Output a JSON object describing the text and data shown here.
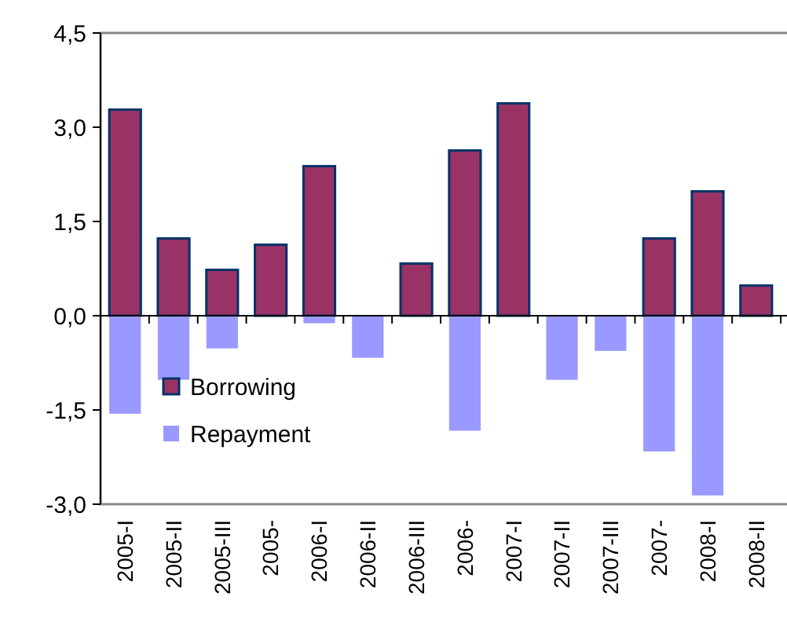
{
  "chart_data": {
    "type": "bar",
    "categories": [
      "2005-I",
      "2005-II",
      "2005-III",
      "2005-",
      "2006-I",
      "2006-II",
      "2006-III",
      "2006-",
      "2007-I",
      "2007-II",
      "2007-III",
      "2007-",
      "2008-I",
      "2008-II"
    ],
    "series": [
      {
        "name": "Borrowing",
        "color": "#993366",
        "values": [
          3.28,
          1.23,
          0.73,
          1.13,
          2.38,
          0,
          0.83,
          2.63,
          3.38,
          0,
          0,
          1.23,
          1.98,
          0.48
        ]
      },
      {
        "name": "Repayment",
        "color": "#9999ff",
        "values": [
          -1.56,
          -1.02,
          -0.52,
          0,
          -0.12,
          -0.67,
          0,
          -1.83,
          0,
          -1.02,
          -0.56,
          -2.16,
          -2.86,
          0
        ]
      }
    ],
    "ylim": [
      -3,
      4.5
    ],
    "yticks": [
      {
        "value": -3,
        "label": "-3,0"
      },
      {
        "value": -1.5,
        "label": "-1,5"
      },
      {
        "value": 0,
        "label": "0,0"
      },
      {
        "value": 1.5,
        "label": "1,5"
      },
      {
        "value": 3,
        "label": "3,0"
      },
      {
        "value": 4.5,
        "label": "4,5"
      }
    ],
    "legend": "bottom left",
    "stacked": true
  }
}
